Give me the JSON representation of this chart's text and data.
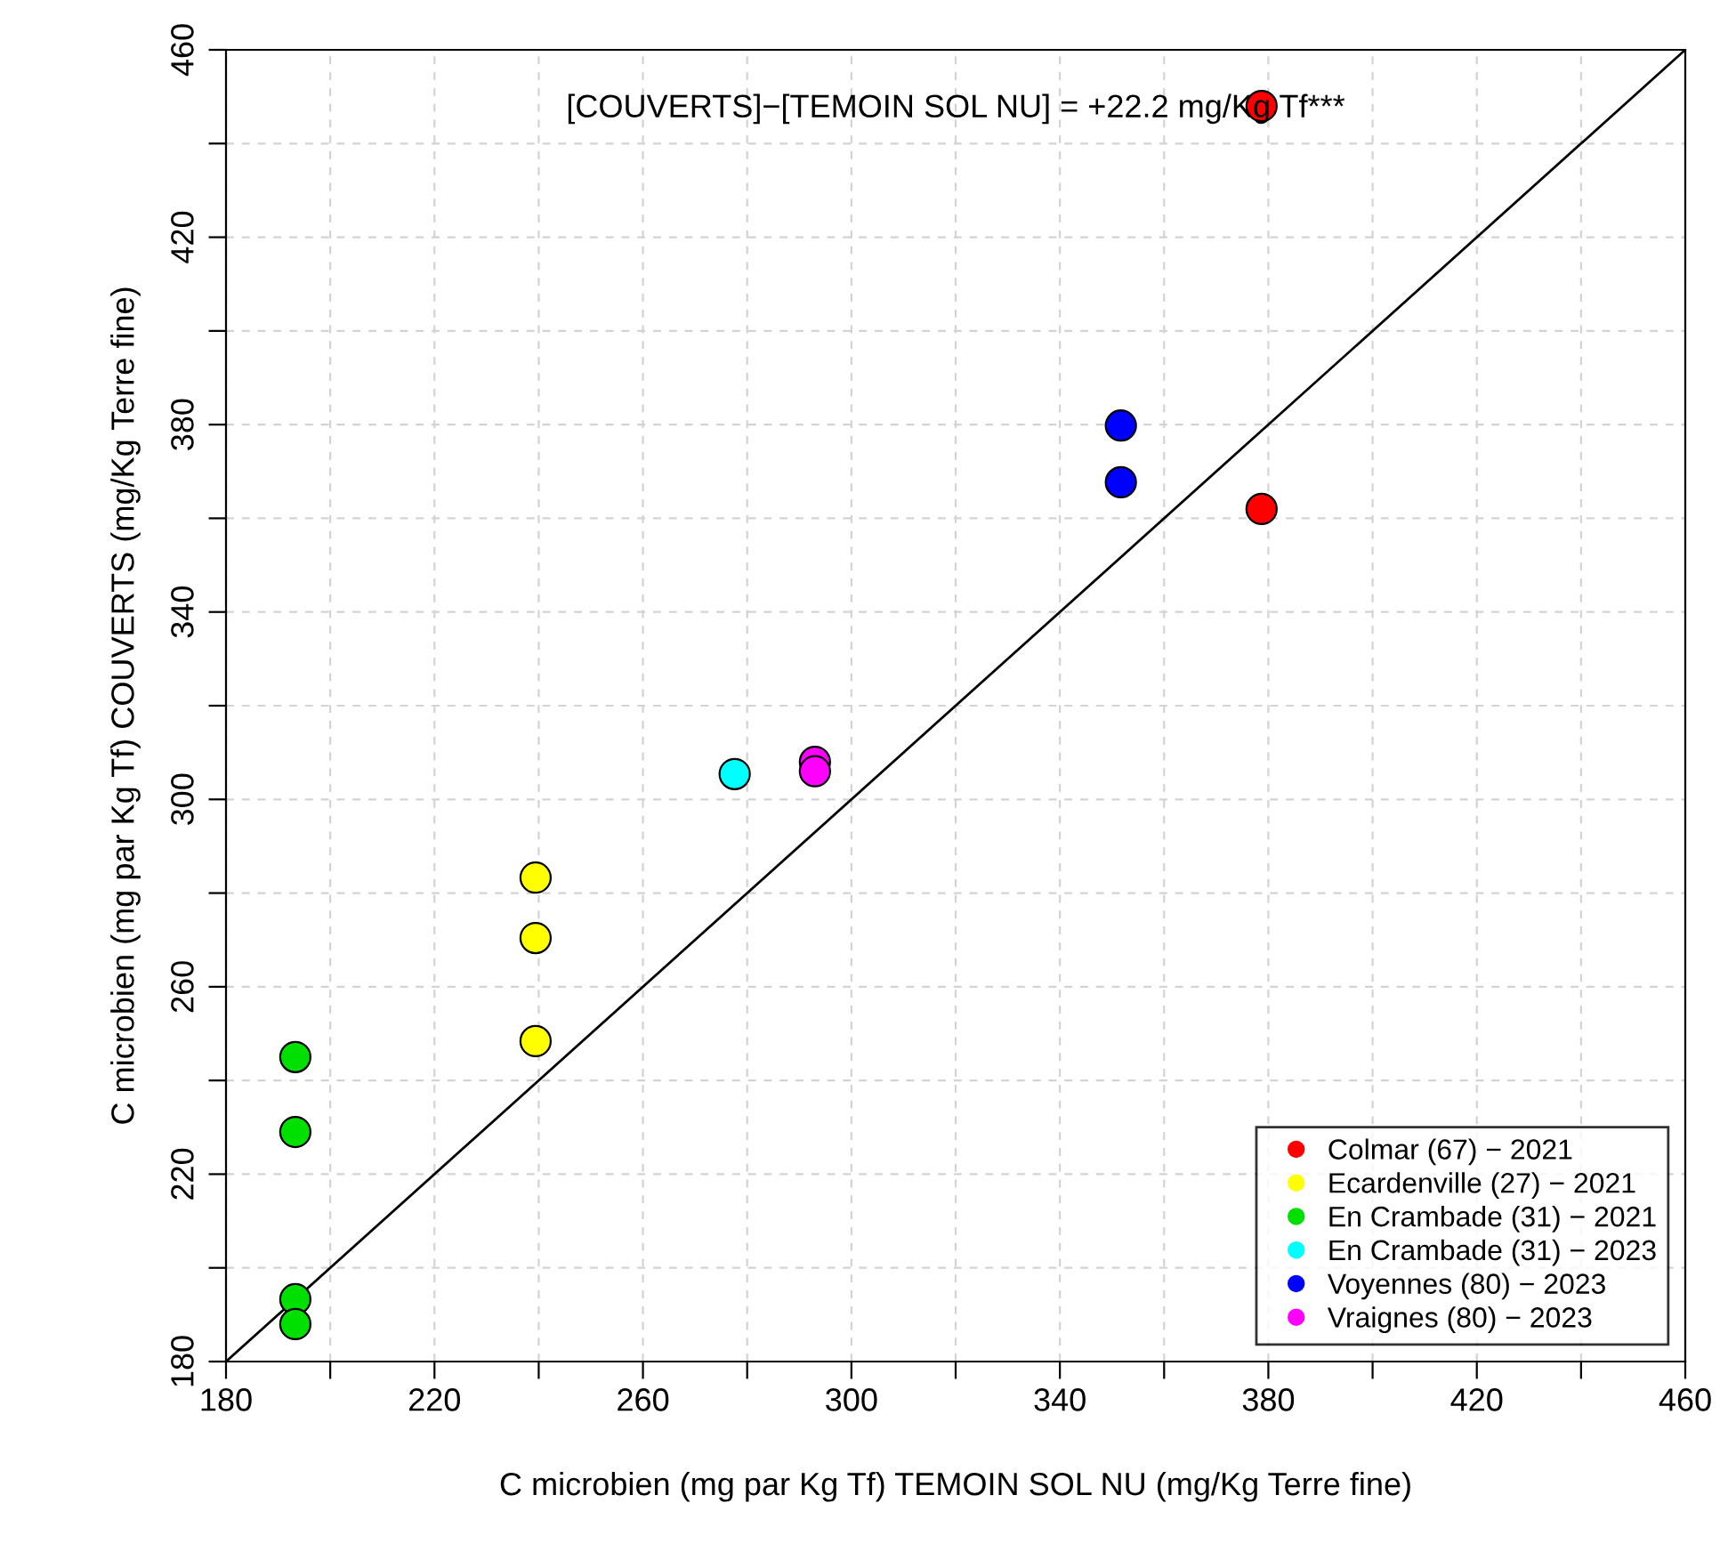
{
  "chart_data": {
    "type": "scatter",
    "xlabel": "C microbien (mg par Kg Tf) TEMOIN SOL NU (mg/Kg Terre fine)",
    "ylabel": "C microbien (mg par Kg Tf) COUVERTS (mg/Kg Terre fine)",
    "annotations": [
      "[COUVERTS]−[TEMOIN SOL NU] = +22.2 mg/Kg Tf***"
    ],
    "xlim": [
      180,
      460
    ],
    "ylim": [
      180,
      460
    ],
    "xticks": [
      180,
      {
        "value": 200,
        "label": null
      },
      220,
      {
        "value": 240,
        "label": null
      },
      260,
      {
        "value": 280,
        "label": null
      },
      300,
      {
        "value": 320,
        "label": null
      },
      340,
      {
        "value": 360,
        "label": null
      },
      380,
      {
        "value": 400,
        "label": null
      },
      420,
      {
        "value": 440,
        "label": null
      },
      460
    ],
    "yticks": [
      180,
      {
        "value": 200,
        "label": null
      },
      220,
      {
        "value": 240,
        "label": null
      },
      260,
      {
        "value": 280,
        "label": null
      },
      300,
      {
        "value": 320,
        "label": null
      },
      340,
      {
        "value": 360,
        "label": null
      },
      380,
      {
        "value": 400,
        "label": null
      },
      420,
      {
        "value": 440,
        "label": null
      },
      460
    ],
    "grid": true,
    "legend": "bottom right",
    "marker": "circle",
    "series": [
      {
        "name": "Colmar (67) − 2021",
        "color": "#ff0000",
        "x": [
          378.7,
          378.7
        ],
        "values": [
          448,
          362
        ]
      },
      {
        "name": "Ecardenville (27) − 2021",
        "color": "#ffff00",
        "x": [
          239.4,
          239.4,
          239.4
        ],
        "values": [
          283.3,
          270.4,
          248.4
        ]
      },
      {
        "name": "En Crambade (31) − 2021",
        "color": "#00e000",
        "x": [
          193.3,
          193.3,
          193.3,
          193.3
        ],
        "values": [
          245,
          229,
          193.3,
          188
        ]
      },
      {
        "name": "En Crambade (31) − 2023",
        "color": "#00ffff",
        "x": [
          277.6
        ],
        "values": [
          305.4
        ]
      },
      {
        "name": "Voyennes (80) − 2023",
        "color": "#0000ff",
        "x": [
          351.7,
          351.7
        ],
        "values": [
          379.8,
          367.7
        ]
      },
      {
        "name": "Vraignes (80) − 2023",
        "color": "#ff00ff",
        "x": [
          293,
          293
        ],
        "values": [
          308,
          306
        ]
      },
      {
        "type": "line",
        "marker": "none",
        "color": "#000000",
        "x": [
          180,
          460
        ],
        "values": [
          180,
          460
        ]
      }
    ]
  }
}
